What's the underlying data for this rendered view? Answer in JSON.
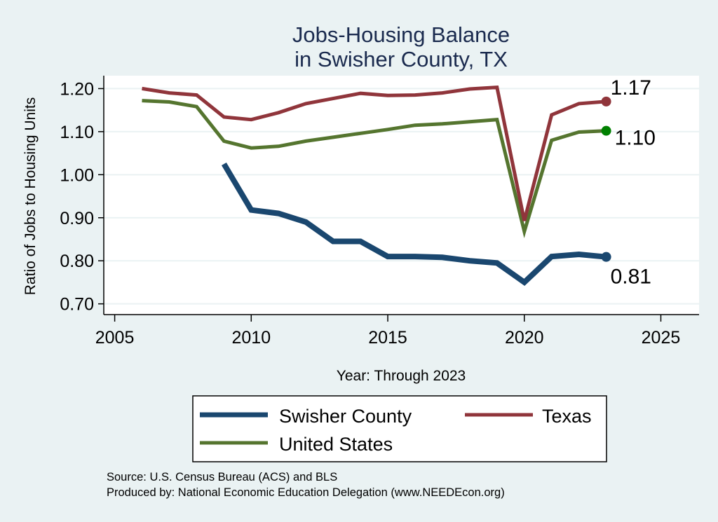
{
  "chart_data": {
    "type": "line",
    "title": [
      "Jobs-Housing Balance",
      "in Swisher County, TX"
    ],
    "xlabel": "Year: Through 2023",
    "ylabel": "Ratio of Jobs to Housing Units",
    "xlim": [
      2004.6,
      2026.4
    ],
    "ylim": [
      0.675,
      1.23
    ],
    "xticks": [
      2005,
      2010,
      2015,
      2020,
      2025
    ],
    "xtick_labels": [
      "2005",
      "2010",
      "2015",
      "2020",
      "2025"
    ],
    "yticks": [
      0.7,
      0.8,
      0.9,
      1.0,
      1.1,
      1.2
    ],
    "ytick_labels": [
      "0.70",
      "0.80",
      "0.90",
      "1.00",
      "1.10",
      "1.20"
    ],
    "grid": true,
    "series": [
      {
        "name": "Swisher County",
        "color": "#1a476f",
        "marker_color": "#1a476f",
        "x": [
          2009,
          2010,
          2011,
          2012,
          2013,
          2014,
          2015,
          2016,
          2017,
          2018,
          2019,
          2020,
          2021,
          2022,
          2023
        ],
        "values": [
          1.025,
          0.918,
          0.91,
          0.89,
          0.845,
          0.845,
          0.81,
          0.81,
          0.808,
          0.8,
          0.795,
          0.75,
          0.81,
          0.815,
          0.809
        ],
        "end_label": "0.81"
      },
      {
        "name": "Texas",
        "color": "#90353b",
        "marker_color": "#90353b",
        "x": [
          2006,
          2007,
          2008,
          2009,
          2010,
          2011,
          2012,
          2013,
          2014,
          2015,
          2016,
          2017,
          2018,
          2019,
          2020,
          2021,
          2022,
          2023
        ],
        "values": [
          1.2,
          1.19,
          1.185,
          1.134,
          1.128,
          1.144,
          1.165,
          1.177,
          1.189,
          1.184,
          1.185,
          1.19,
          1.199,
          1.203,
          0.893,
          1.139,
          1.165,
          1.17
        ],
        "end_label": "1.17"
      },
      {
        "name": "United States",
        "color": "#55752f",
        "marker_color": "#008000",
        "x": [
          2006,
          2007,
          2008,
          2009,
          2010,
          2011,
          2012,
          2013,
          2014,
          2015,
          2016,
          2017,
          2018,
          2019,
          2020,
          2021,
          2022,
          2023
        ],
        "values": [
          1.172,
          1.169,
          1.158,
          1.078,
          1.062,
          1.066,
          1.078,
          1.087,
          1.096,
          1.105,
          1.115,
          1.118,
          1.123,
          1.128,
          0.868,
          1.08,
          1.099,
          1.102
        ],
        "end_label": "1.10"
      }
    ],
    "legend": {
      "placement": "bottom",
      "entries": [
        "Swisher County",
        "Texas",
        "United States"
      ]
    },
    "notes": [
      "Source: U.S. Census Bureau (ACS) and BLS",
      "Produced by: National Economic Education Delegation (www.NEEDEcon.org)"
    ]
  }
}
